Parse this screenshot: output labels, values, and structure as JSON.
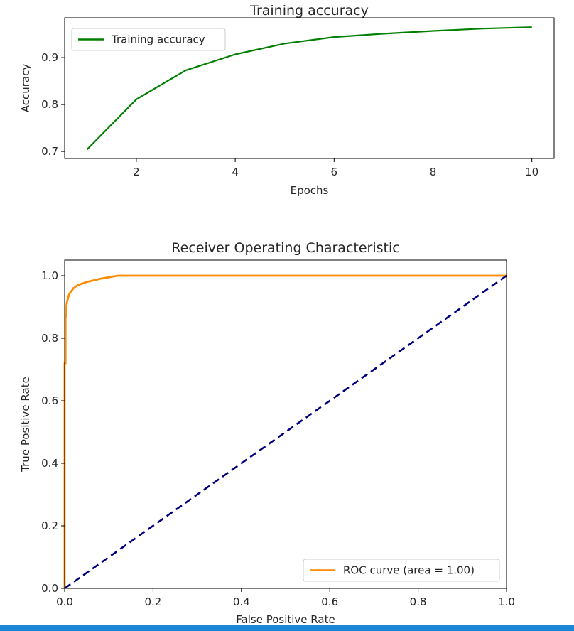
{
  "chart_data": [
    {
      "type": "line",
      "title": "Training accuracy",
      "xlabel": "Epochs",
      "ylabel": "Accuracy",
      "xlim": [
        0.55,
        10.45
      ],
      "ylim": [
        0.685,
        0.985
      ],
      "xticks": [
        2,
        4,
        6,
        8,
        10
      ],
      "xtick_labels": [
        "2",
        "4",
        "6",
        "8",
        "10"
      ],
      "yticks": [
        0.7,
        0.8,
        0.9
      ],
      "ytick_labels": [
        "0.7",
        "0.8",
        "0.9"
      ],
      "legend_position": "top-left",
      "grid": false,
      "series": [
        {
          "name": "Training accuracy",
          "color": "#008000",
          "x": [
            1,
            2,
            3,
            4,
            5,
            6,
            7,
            8,
            9,
            10
          ],
          "y": [
            0.704,
            0.811,
            0.873,
            0.907,
            0.93,
            0.944,
            0.951,
            0.957,
            0.962,
            0.965
          ]
        }
      ]
    },
    {
      "type": "line",
      "title": "Receiver Operating Characteristic",
      "xlabel": "False Positive Rate",
      "ylabel": "True Positive Rate",
      "xlim": [
        0.0,
        1.0
      ],
      "ylim": [
        0.0,
        1.05
      ],
      "xticks": [
        0.0,
        0.2,
        0.4,
        0.6,
        0.8,
        1.0
      ],
      "xtick_labels": [
        "0.0",
        "0.2",
        "0.4",
        "0.6",
        "0.8",
        "1.0"
      ],
      "yticks": [
        0.0,
        0.2,
        0.4,
        0.6,
        0.8,
        1.0
      ],
      "ytick_labels": [
        "0.0",
        "0.2",
        "0.4",
        "0.6",
        "0.8",
        "1.0"
      ],
      "legend_position": "lower-right",
      "grid": false,
      "series": [
        {
          "name": "ROC curve (area = 1.00)",
          "color": "#ff8c00",
          "style": "solid",
          "x": [
            0.0,
            0.0,
            0.002,
            0.002,
            0.004,
            0.004,
            0.006,
            0.008,
            0.01,
            0.012,
            0.015,
            0.02,
            0.025,
            0.03,
            0.04,
            0.05,
            0.065,
            0.08,
            0.1,
            0.12,
            0.5,
            1.0
          ],
          "y": [
            0.0,
            0.72,
            0.72,
            0.87,
            0.87,
            0.905,
            0.92,
            0.93,
            0.94,
            0.945,
            0.95,
            0.96,
            0.965,
            0.97,
            0.975,
            0.98,
            0.985,
            0.99,
            0.995,
            1.0,
            1.0,
            1.0
          ]
        },
        {
          "name": "",
          "color": "#000080",
          "style": "dashed",
          "x": [
            0.0,
            1.0
          ],
          "y": [
            0.0,
            1.0
          ]
        }
      ]
    }
  ]
}
